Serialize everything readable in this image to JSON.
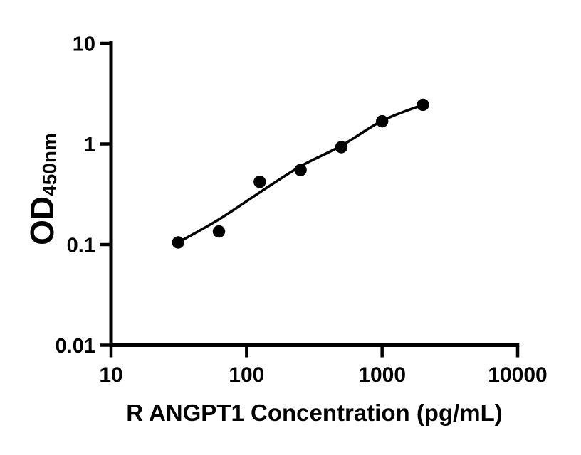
{
  "figure": {
    "background_color": "#ffffff",
    "xlabel": "R ANGPT1 Concentration (pg/mL)",
    "ylabel_main": "OD",
    "ylabel_sub": "450nm"
  },
  "chart_data": {
    "type": "scatter",
    "title": "",
    "xlabel": "R ANGPT1 Concentration (pg/mL)",
    "ylabel": "OD450nm",
    "x_scale": "log10",
    "y_scale": "log10",
    "xlim": [
      10,
      10000
    ],
    "ylim": [
      0.01,
      10
    ],
    "x_ticks": [
      10,
      100,
      1000,
      10000
    ],
    "y_ticks": [
      10,
      1,
      0.1,
      0.01
    ],
    "grid": false,
    "legend": false,
    "axis_color": "#000000",
    "point_color": "#000000",
    "line_color": "#000000",
    "series": [
      {
        "name": "standard-points",
        "type": "scatter",
        "x": [
          31.25,
          62.5,
          125,
          250,
          500,
          1000,
          2000
        ],
        "y": [
          0.105,
          0.135,
          0.42,
          0.55,
          0.93,
          1.68,
          2.45
        ]
      },
      {
        "name": "fit-curve",
        "type": "line",
        "x": [
          31.25,
          62.5,
          125,
          250,
          500,
          1000,
          2000
        ],
        "y": [
          0.105,
          0.178,
          0.33,
          0.6,
          0.96,
          1.7,
          2.45
        ]
      }
    ]
  }
}
